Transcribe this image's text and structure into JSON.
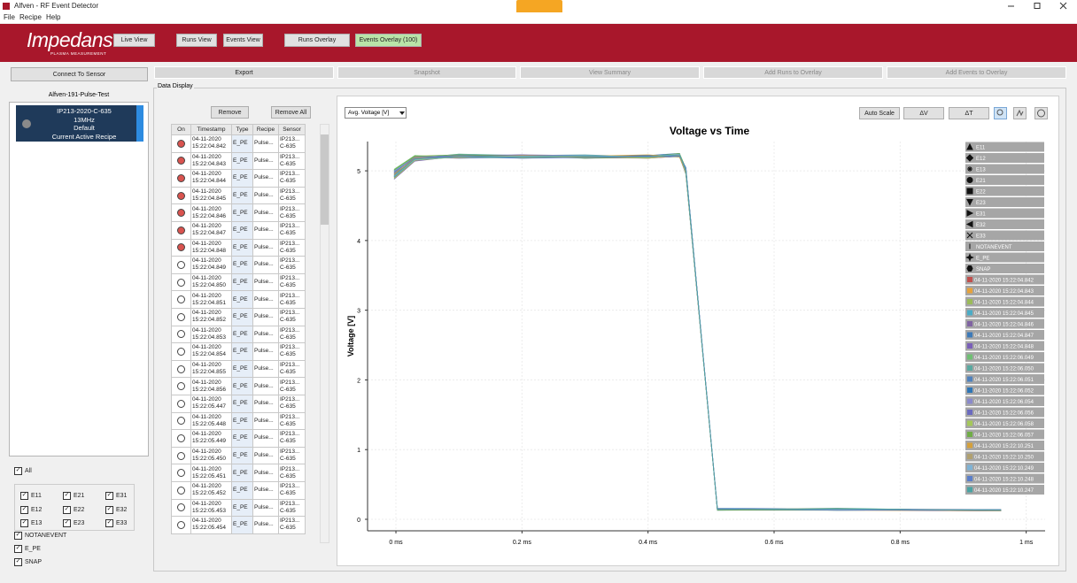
{
  "window": {
    "title": "Alfven - RF Event Detector"
  },
  "menu": [
    "File",
    "Recipe",
    "Help"
  ],
  "toolbar": {
    "logo": "Impedans",
    "logo_sub": "PLASMA MEASUREMENT",
    "buttons": [
      "Live View",
      "Runs View",
      "Events View",
      "Runs Overlay",
      "Events Overlay (100)"
    ]
  },
  "left": {
    "connect": "Connect To Sensor",
    "device": "Alfven-191-Pulse-Test",
    "card": [
      "IP213-2020-C-635",
      "13MHz",
      "Default",
      "Current Active Recipe"
    ]
  },
  "filters": {
    "all": "All",
    "events": [
      "E11",
      "E21",
      "E31",
      "E12",
      "E22",
      "E32",
      "E13",
      "E23",
      "E33"
    ],
    "extra": [
      "NOTANEVENT",
      "E_PE",
      "SNAP"
    ]
  },
  "actions": [
    "Export",
    "Snapshot",
    "View Summary",
    "Add Runs to Overlay",
    "Add Events to Overlay"
  ],
  "data_display": "Data Display",
  "table": {
    "buttons": [
      "Remove",
      "Remove All"
    ],
    "headers": [
      "On",
      "Timestamp",
      "Type",
      "Recipe",
      "Sensor"
    ],
    "rows": [
      {
        "on": true,
        "timestamp": "04-11-2020 15:22:04.842",
        "type": "E_PE",
        "recipe": "Pulse...",
        "sensor": "IP213... C-635"
      },
      {
        "on": true,
        "timestamp": "04-11-2020 15:22:04.843",
        "type": "E_PE",
        "recipe": "Pulse...",
        "sensor": "IP213... C-635"
      },
      {
        "on": true,
        "timestamp": "04-11-2020 15:22:04.844",
        "type": "E_PE",
        "recipe": "Pulse...",
        "sensor": "IP213... C-635"
      },
      {
        "on": true,
        "timestamp": "04-11-2020 15:22:04.845",
        "type": "E_PE",
        "recipe": "Pulse...",
        "sensor": "IP213... C-635"
      },
      {
        "on": true,
        "timestamp": "04-11-2020 15:22:04.846",
        "type": "E_PE",
        "recipe": "Pulse...",
        "sensor": "IP213... C-635"
      },
      {
        "on": true,
        "timestamp": "04-11-2020 15:22:04.847",
        "type": "E_PE",
        "recipe": "Pulse...",
        "sensor": "IP213... C-635"
      },
      {
        "on": true,
        "timestamp": "04-11-2020 15:22:04.848",
        "type": "E_PE",
        "recipe": "Pulse...",
        "sensor": "IP213... C-635"
      },
      {
        "on": false,
        "timestamp": "04-11-2020 15:22:04.849",
        "type": "E_PE",
        "recipe": "Pulse...",
        "sensor": "IP213... C-635"
      },
      {
        "on": false,
        "timestamp": "04-11-2020 15:22:04.850",
        "type": "E_PE",
        "recipe": "Pulse...",
        "sensor": "IP213... C-635"
      },
      {
        "on": false,
        "timestamp": "04-11-2020 15:22:04.851",
        "type": "E_PE",
        "recipe": "Pulse...",
        "sensor": "IP213... C-635"
      },
      {
        "on": false,
        "timestamp": "04-11-2020 15:22:04.852",
        "type": "E_PE",
        "recipe": "Pulse...",
        "sensor": "IP213... C-635"
      },
      {
        "on": false,
        "timestamp": "04-11-2020 15:22:04.853",
        "type": "E_PE",
        "recipe": "Pulse...",
        "sensor": "IP213... C-635"
      },
      {
        "on": false,
        "timestamp": "04-11-2020 15:22:04.854",
        "type": "E_PE",
        "recipe": "Pulse...",
        "sensor": "IP213... C-635"
      },
      {
        "on": false,
        "timestamp": "04-11-2020 15:22:04.855",
        "type": "E_PE",
        "recipe": "Pulse...",
        "sensor": "IP213... C-635"
      },
      {
        "on": false,
        "timestamp": "04-11-2020 15:22:04.856",
        "type": "E_PE",
        "recipe": "Pulse...",
        "sensor": "IP213... C-635"
      },
      {
        "on": false,
        "timestamp": "04-11-2020 15:22:05.447",
        "type": "E_PE",
        "recipe": "Pulse...",
        "sensor": "IP213... C-635"
      },
      {
        "on": false,
        "timestamp": "04-11-2020 15:22:05.448",
        "type": "E_PE",
        "recipe": "Pulse...",
        "sensor": "IP213... C-635"
      },
      {
        "on": false,
        "timestamp": "04-11-2020 15:22:05.449",
        "type": "E_PE",
        "recipe": "Pulse...",
        "sensor": "IP213... C-635"
      },
      {
        "on": false,
        "timestamp": "04-11-2020 15:22:05.450",
        "type": "E_PE",
        "recipe": "Pulse...",
        "sensor": "IP213... C-635"
      },
      {
        "on": false,
        "timestamp": "04-11-2020 15:22:05.451",
        "type": "E_PE",
        "recipe": "Pulse...",
        "sensor": "IP213... C-635"
      },
      {
        "on": false,
        "timestamp": "04-11-2020 15:22:05.452",
        "type": "E_PE",
        "recipe": "Pulse...",
        "sensor": "IP213... C-635"
      },
      {
        "on": false,
        "timestamp": "04-11-2020 15:22:05.453",
        "type": "E_PE",
        "recipe": "Pulse...",
        "sensor": "IP213... C-635"
      },
      {
        "on": false,
        "timestamp": "04-11-2020 15:22:05.454",
        "type": "E_PE",
        "recipe": "Pulse...",
        "sensor": "IP213... C-635"
      }
    ]
  },
  "chart_controls": {
    "dropdown": "Avg. Voltage [V]",
    "buttons": [
      "Auto Scale",
      "ΔV",
      "ΔT"
    ]
  },
  "chart_data": {
    "type": "line",
    "title": "Voltage vs Time",
    "y_label": "Voltage [V]",
    "grid": true,
    "xlim": [
      -0.045,
      1.03
    ],
    "ylim": [
      -0.165,
      5.42
    ],
    "xticks": [
      {
        "value": 0,
        "label": "0 ms"
      },
      {
        "value": 0.2,
        "label": "0.2 ms"
      },
      {
        "value": 0.4,
        "label": "0.4 ms"
      },
      {
        "value": 0.6,
        "label": "0.6 ms"
      },
      {
        "value": 0.8,
        "label": "0.8 ms"
      },
      {
        "value": 1,
        "label": "1 ms"
      }
    ],
    "yticks": [
      0,
      1,
      2,
      3,
      4,
      5
    ],
    "marker_legend": [
      "E11",
      "E12",
      "E13",
      "E21",
      "E22",
      "E23",
      "E31",
      "E32",
      "E33",
      "NOTANEVENT",
      "E_PE",
      "SNAP"
    ],
    "x": [
      -0.003,
      0.03,
      0.1,
      0.2,
      0.3,
      0.4,
      0.45,
      0.46,
      0.51,
      0.7,
      0.96
    ],
    "series": [
      {
        "name": "04-11-2020 15:22:04.842",
        "color": "#c0504d",
        "values": [
          4.92,
          5.17,
          5.21,
          5.2,
          5.19,
          5.2,
          5.23,
          4.98,
          0.14,
          0.15,
          0.13
        ]
      },
      {
        "name": "04-11-2020 15:22:04.843",
        "color": "#e6a23c",
        "values": [
          4.98,
          5.2,
          5.19,
          5.22,
          5.21,
          5.18,
          5.21,
          5.02,
          0.15,
          0.13,
          0.12
        ]
      },
      {
        "name": "04-11-2020 15:22:04.844",
        "color": "#9bbb59",
        "values": [
          4.9,
          5.15,
          5.22,
          5.2,
          5.22,
          5.21,
          5.24,
          4.95,
          0.16,
          0.14,
          0.14
        ]
      },
      {
        "name": "04-11-2020 15:22:04.845",
        "color": "#4bacc6",
        "values": [
          5.0,
          5.21,
          5.18,
          5.19,
          5.2,
          5.2,
          5.2,
          5.05,
          0.13,
          0.15,
          0.13
        ]
      },
      {
        "name": "04-11-2020 15:22:04.846",
        "color": "#8064a2",
        "values": [
          4.94,
          5.19,
          5.2,
          5.23,
          5.18,
          5.19,
          5.22,
          5.0,
          0.15,
          0.14,
          0.12
        ]
      },
      {
        "name": "04-11-2020 15:22:04.847",
        "color": "#3d7ab8",
        "values": [
          4.96,
          5.16,
          5.23,
          5.2,
          5.21,
          5.22,
          5.25,
          4.97,
          0.14,
          0.13,
          0.13
        ]
      },
      {
        "name": "04-11-2020 15:22:04.848",
        "color": "#7a5fb8",
        "values": [
          4.88,
          5.14,
          5.21,
          5.21,
          5.19,
          5.18,
          5.21,
          5.03,
          0.16,
          0.15,
          0.14
        ]
      },
      {
        "name": "04-11-2020 15:22:06.049",
        "color": "#6fbf73",
        "values": [
          5.02,
          5.22,
          5.19,
          5.2,
          5.2,
          5.21,
          5.23,
          5.01,
          0.15,
          0.14,
          0.13
        ]
      },
      {
        "name": "04-11-2020 15:22:06.050",
        "color": "#5aa9a0",
        "values": [
          4.93,
          5.18,
          5.24,
          5.22,
          5.23,
          5.2,
          5.22,
          4.99,
          0.14,
          0.16,
          0.12
        ]
      },
      {
        "name": "04-11-2020 15:22:06.051",
        "color": "#4f81bd",
        "values": [
          4.97,
          5.2,
          5.2,
          5.18,
          5.2,
          5.19,
          5.24,
          5.04,
          0.13,
          0.14,
          0.13
        ]
      },
      {
        "name": "04-11-2020 15:22:06.052",
        "color": "#2e75b6",
        "values": [
          4.91,
          5.16,
          5.21,
          5.21,
          5.21,
          5.22,
          5.2,
          4.96,
          0.15,
          0.13,
          0.14
        ]
      },
      {
        "name": "04-11-2020 15:22:06.054",
        "color": "#8a8acb",
        "values": [
          4.99,
          5.19,
          5.18,
          5.2,
          5.19,
          5.2,
          5.23,
          5.0,
          0.16,
          0.15,
          0.13
        ]
      },
      {
        "name": "04-11-2020 15:22:06.056",
        "color": "#6b6bbf",
        "values": [
          4.95,
          5.17,
          5.22,
          5.23,
          5.22,
          5.21,
          5.21,
          5.02,
          0.14,
          0.14,
          0.12
        ]
      },
      {
        "name": "04-11-2020 15:22:06.058",
        "color": "#a5c85a",
        "values": [
          4.89,
          5.15,
          5.2,
          5.19,
          5.2,
          5.18,
          5.22,
          4.98,
          0.15,
          0.15,
          0.13
        ]
      },
      {
        "name": "04-11-2020 15:22:06.057",
        "color": "#70ad47",
        "values": [
          5.01,
          5.21,
          5.23,
          5.21,
          5.18,
          5.2,
          5.25,
          5.03,
          0.13,
          0.13,
          0.14
        ]
      },
      {
        "name": "04-11-2020 15:22:10.251",
        "color": "#d4a03c",
        "values": [
          4.94,
          5.18,
          5.19,
          5.22,
          5.21,
          5.23,
          5.2,
          4.97,
          0.15,
          0.14,
          0.13
        ]
      },
      {
        "name": "04-11-2020 15:22:10.250",
        "color": "#b0a070",
        "values": [
          4.96,
          5.2,
          5.21,
          5.2,
          5.2,
          5.19,
          5.22,
          5.01,
          0.14,
          0.15,
          0.12
        ]
      },
      {
        "name": "04-11-2020 15:22:10.249",
        "color": "#7fb3d5",
        "values": [
          4.92,
          5.16,
          5.2,
          5.21,
          5.22,
          5.2,
          5.24,
          4.99,
          0.16,
          0.14,
          0.13
        ]
      },
      {
        "name": "04-11-2020 15:22:10.248",
        "color": "#5a7ec9",
        "values": [
          4.98,
          5.19,
          5.22,
          5.18,
          5.19,
          5.21,
          5.21,
          5.04,
          0.15,
          0.13,
          0.14
        ]
      },
      {
        "name": "04-11-2020 15:22:10.247",
        "color": "#4aa3a3",
        "values": [
          4.93,
          5.17,
          5.2,
          5.2,
          5.21,
          5.2,
          5.23,
          5.0,
          0.14,
          0.15,
          0.13
        ]
      }
    ]
  }
}
